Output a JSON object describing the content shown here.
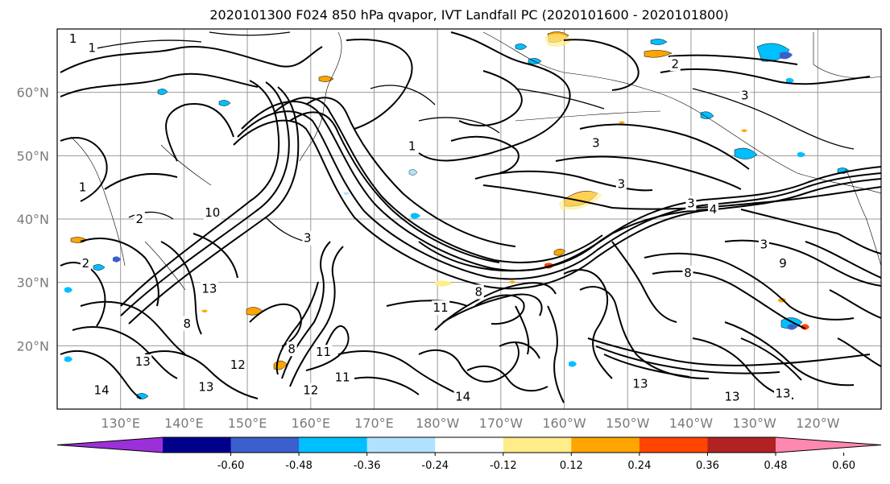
{
  "title": "2020101300 F024 850 hPa qvapor, IVT Landfall PC (2020101600 - 2020101800)",
  "map": {
    "lon_range": [
      120,
      250
    ],
    "lat_range": [
      10,
      70
    ],
    "lat_ticks": [
      {
        "lat": 60,
        "label": "60°N"
      },
      {
        "lat": 50,
        "label": "50°N"
      },
      {
        "lat": 40,
        "label": "40°N"
      },
      {
        "lat": 30,
        "label": "30°N"
      },
      {
        "lat": 20,
        "label": "20°N"
      }
    ],
    "lon_ticks": [
      {
        "lon": 130,
        "label": "130°E"
      },
      {
        "lon": 140,
        "label": "140°E"
      },
      {
        "lon": 150,
        "label": "150°E"
      },
      {
        "lon": 160,
        "label": "160°E"
      },
      {
        "lon": 170,
        "label": "170°E"
      },
      {
        "lon": 180,
        "label": "180°W"
      },
      {
        "lon": 190,
        "label": "170°W"
      },
      {
        "lon": 200,
        "label": "160°W"
      },
      {
        "lon": 210,
        "label": "150°W"
      },
      {
        "lon": 220,
        "label": "140°W"
      },
      {
        "lon": 230,
        "label": "130°W"
      },
      {
        "lon": 240,
        "label": "120°W"
      }
    ],
    "gridlines": true,
    "contour_labels": [
      {
        "text": "1",
        "lon": 122.5,
        "lat": 68.5
      },
      {
        "text": "1",
        "lon": 125.5,
        "lat": 67.0
      },
      {
        "text": "2",
        "lon": 217.5,
        "lat": 64.5
      },
      {
        "text": "3",
        "lon": 228.5,
        "lat": 59.5
      },
      {
        "text": "3",
        "lon": 205.0,
        "lat": 52.0
      },
      {
        "text": "1",
        "lon": 176.0,
        "lat": 51.5
      },
      {
        "text": "3",
        "lon": 209.0,
        "lat": 45.5
      },
      {
        "text": "3",
        "lon": 220.0,
        "lat": 42.5
      },
      {
        "text": "4",
        "lon": 223.5,
        "lat": 41.5
      },
      {
        "text": "2",
        "lon": 133.0,
        "lat": 40.0
      },
      {
        "text": "10",
        "lon": 144.5,
        "lat": 41.0
      },
      {
        "text": "1",
        "lon": 124.0,
        "lat": 45.0
      },
      {
        "text": "2",
        "lon": 124.5,
        "lat": 33.0
      },
      {
        "text": "3",
        "lon": 159.5,
        "lat": 37.0
      },
      {
        "text": "3",
        "lon": 231.5,
        "lat": 36.0
      },
      {
        "text": "9",
        "lon": 234.5,
        "lat": 33.0
      },
      {
        "text": "8",
        "lon": 219.5,
        "lat": 31.5
      },
      {
        "text": "11",
        "lon": 180.5,
        "lat": 26.0
      },
      {
        "text": "8",
        "lon": 186.5,
        "lat": 28.5
      },
      {
        "text": "13",
        "lon": 144.0,
        "lat": 29.0
      },
      {
        "text": "8",
        "lon": 140.5,
        "lat": 23.5
      },
      {
        "text": "8",
        "lon": 157.0,
        "lat": 19.5
      },
      {
        "text": "11",
        "lon": 162.0,
        "lat": 19.0
      },
      {
        "text": "13",
        "lon": 133.5,
        "lat": 17.5
      },
      {
        "text": "12",
        "lon": 148.5,
        "lat": 17.0
      },
      {
        "text": "11",
        "lon": 165.0,
        "lat": 15.0
      },
      {
        "text": "13",
        "lon": 143.5,
        "lat": 13.5
      },
      {
        "text": "12",
        "lon": 160.0,
        "lat": 13.0
      },
      {
        "text": "14",
        "lon": 184.0,
        "lat": 12.0
      },
      {
        "text": "13",
        "lon": 212.0,
        "lat": 14.0
      },
      {
        "text": "13",
        "lon": 226.5,
        "lat": 12.0
      },
      {
        "text": "13",
        "lon": 234.5,
        "lat": 12.5
      },
      {
        "text": "14",
        "lon": 127.0,
        "lat": 13.0
      }
    ]
  },
  "colorbar": {
    "colors": [
      "#9b30d9",
      "#00008b",
      "#3a5fcd",
      "#00bfff",
      "#b0e2ff",
      "#ffffff",
      "#ffec8b",
      "#ffa500",
      "#ff4500",
      "#b22222",
      "#ff88b0"
    ],
    "tick_labels": [
      "-0.60",
      "-0.48",
      "-0.36",
      "-0.24",
      "-0.12",
      "0.12",
      "0.24",
      "0.36",
      "0.48",
      "0.60"
    ]
  }
}
